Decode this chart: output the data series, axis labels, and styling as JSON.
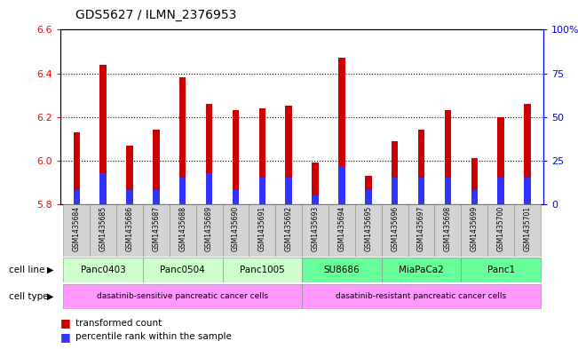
{
  "title": "GDS5627 / ILMN_2376953",
  "samples": [
    "GSM1435684",
    "GSM1435685",
    "GSM1435686",
    "GSM1435687",
    "GSM1435688",
    "GSM1435689",
    "GSM1435690",
    "GSM1435691",
    "GSM1435692",
    "GSM1435693",
    "GSM1435694",
    "GSM1435695",
    "GSM1435696",
    "GSM1435697",
    "GSM1435698",
    "GSM1435699",
    "GSM1435700",
    "GSM1435701"
  ],
  "red_values": [
    6.13,
    6.44,
    6.07,
    6.14,
    6.38,
    6.26,
    6.23,
    6.24,
    6.25,
    5.99,
    6.47,
    5.93,
    6.09,
    6.14,
    6.23,
    6.01,
    6.2,
    6.26
  ],
  "blue_percentiles": [
    8,
    18,
    8,
    8,
    15,
    18,
    8,
    15,
    15,
    5,
    22,
    8,
    15,
    15,
    15,
    8,
    15,
    15
  ],
  "baseline": 5.8,
  "ylim_left": [
    5.8,
    6.6
  ],
  "ylim_right": [
    0,
    100
  ],
  "yticks_left": [
    5.8,
    6.0,
    6.2,
    6.4,
    6.6
  ],
  "yticks_right": [
    0,
    25,
    50,
    75,
    100
  ],
  "ytick_labels_right": [
    "0",
    "25",
    "50",
    "75",
    "100%"
  ],
  "cell_lines": [
    {
      "label": "Panc0403",
      "start": 0,
      "end": 2
    },
    {
      "label": "Panc0504",
      "start": 3,
      "end": 5
    },
    {
      "label": "Panc1005",
      "start": 6,
      "end": 8
    },
    {
      "label": "SU8686",
      "start": 9,
      "end": 11
    },
    {
      "label": "MiaPaCa2",
      "start": 12,
      "end": 14
    },
    {
      "label": "Panc1",
      "start": 15,
      "end": 17
    }
  ],
  "cell_types": [
    {
      "label": "dasatinib-sensitive pancreatic cancer cells",
      "start": 0,
      "end": 8
    },
    {
      "label": "dasatinib-resistant pancreatic cancer cells",
      "start": 9,
      "end": 17
    }
  ],
  "cell_line_colors_sensitive": "#ccffcc",
  "cell_line_color_resistant": "#66ff99",
  "cell_type_color": "#ff99ff",
  "bar_width": 0.25,
  "red_color": "#cc0000",
  "blue_color": "#3333ff"
}
